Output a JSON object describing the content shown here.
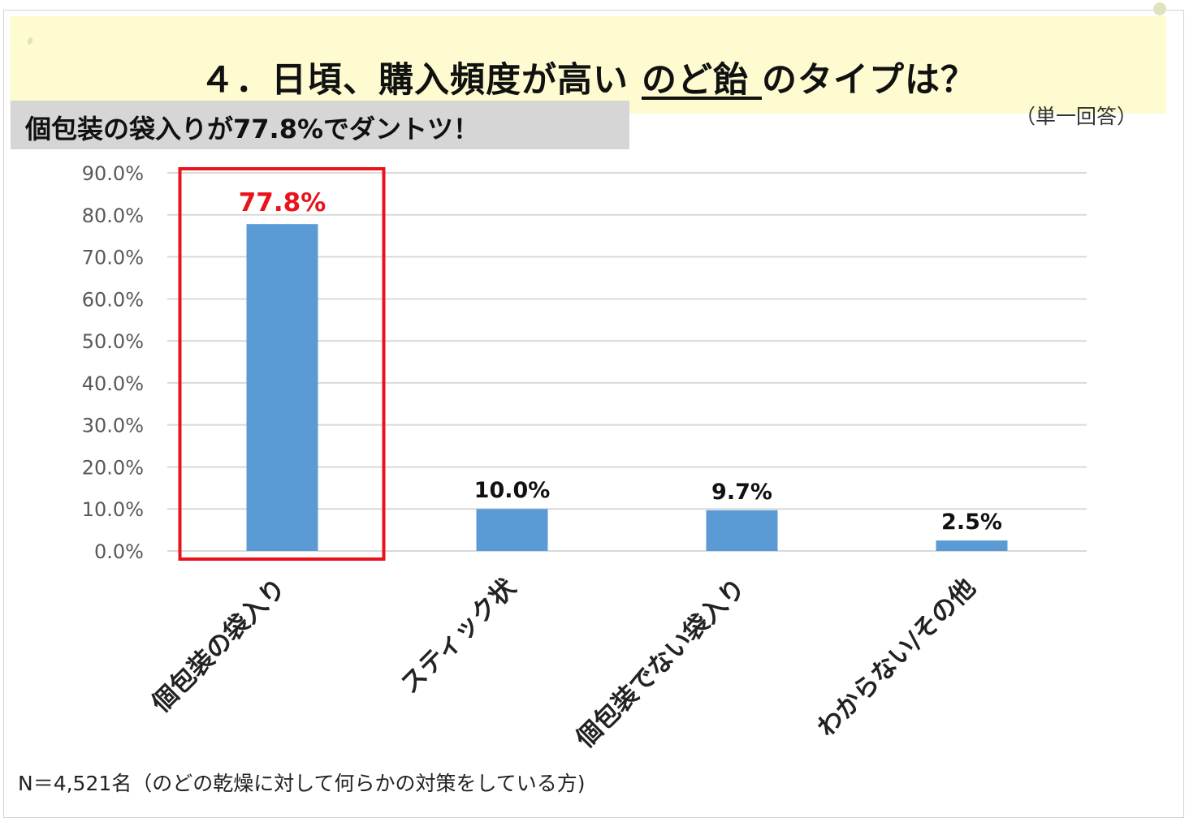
{
  "header": {
    "title_prefix": "４．日頃、購入頻度が高い ",
    "title_underlined": "のど飴 ",
    "title_suffix": "のタイプは？",
    "answer_type": "（単一回答）",
    "headline": "個包装の袋入りが77.8%でダントツ！"
  },
  "colors": {
    "title_band": "#fdfbcf",
    "headline_box": "#d6d6d6",
    "bar": "#5b9bd5",
    "highlight": "#e8131b",
    "grid": "#d9d9d9"
  },
  "chart_data": {
    "type": "bar",
    "categories": [
      "個包装の袋入り",
      "スティック状",
      "個包装でない袋入り",
      "わからない/その他"
    ],
    "values": [
      77.8,
      10.0,
      9.7,
      2.5
    ],
    "data_labels": [
      "77.8%",
      "10.0%",
      "9.7%",
      "2.5%"
    ],
    "y_ticks": [
      "0.0%",
      "10.0%",
      "20.0%",
      "30.0%",
      "40.0%",
      "50.0%",
      "60.0%",
      "70.0%",
      "80.0%",
      "90.0%"
    ],
    "ylim": [
      0,
      90
    ],
    "highlight_category": "個包装の袋入り",
    "grid": true,
    "legend": "none"
  },
  "footer": {
    "note": "N＝4,521名（のどの乾燥に対して何らかの対策をしている方)"
  }
}
